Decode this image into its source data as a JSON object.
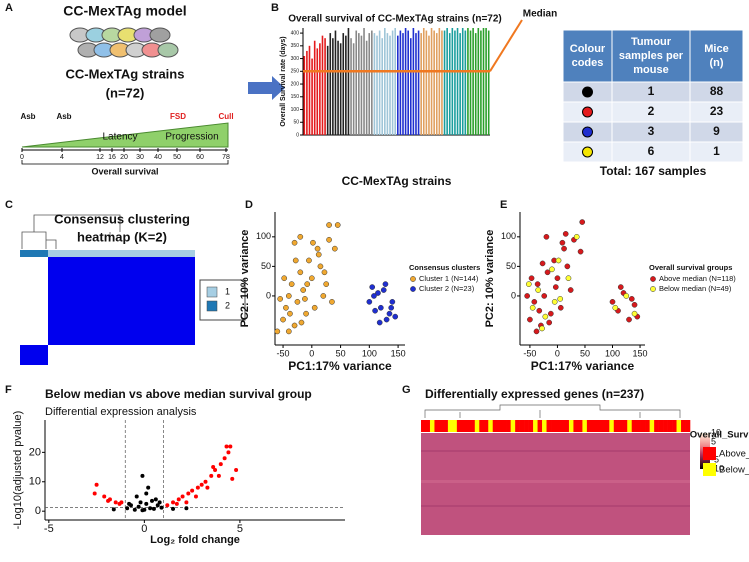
{
  "panel_labels": [
    "A",
    "B",
    "C",
    "D",
    "E",
    "F",
    "G"
  ],
  "panel_a": {
    "title": "CC-MexTAg model",
    "strains_label": "CC-MexTAg strains",
    "strains_n": "(n=72)",
    "events": [
      "Asb",
      "Asb",
      "FSD",
      "Cull"
    ],
    "phases": [
      "Latency",
      "Progression"
    ],
    "timeline_ticks": [
      0,
      4,
      12,
      16,
      20,
      30,
      40,
      50,
      60,
      78
    ],
    "axis_label": "Overall survival"
  },
  "panel_b_table": {
    "headers": [
      [
        "Colour",
        "codes"
      ],
      [
        "Tumour",
        "samples per",
        "mouse"
      ],
      [
        "Mice",
        "(n)"
      ]
    ],
    "rows": [
      {
        "dot_color": "#000000",
        "samples": 1,
        "mice": 88
      },
      {
        "dot_color": "#e41a1c",
        "samples": 2,
        "mice": 23
      },
      {
        "dot_color": "#1f2fd0",
        "samples": 3,
        "mice": 9
      },
      {
        "dot_color": "#f5e600",
        "samples": 6,
        "mice": 1
      }
    ],
    "total": "Total: 167 samples"
  },
  "panel_c": {
    "title_lines": [
      "Consensus clustering",
      "heatmap (K=2)"
    ],
    "legend": [
      {
        "label": "1",
        "color": "#a6cee3"
      },
      {
        "label": "2",
        "color": "#1f78b4"
      }
    ]
  },
  "panel_g": {
    "title": "Differentially expressed genes (n=237)",
    "legend_title": "Overall_Survival",
    "legend": [
      {
        "label": "Above_median",
        "color": "#ff0000"
      },
      {
        "label": "Below_median",
        "color": "#ffff00"
      }
    ],
    "colorbar": {
      "range": [
        -10,
        10
      ],
      "ticks": [
        10,
        5,
        0,
        -5,
        -10
      ]
    },
    "annotation": [
      0,
      0,
      1,
      0,
      0,
      0,
      1,
      1,
      0,
      0,
      0,
      0,
      1,
      0,
      0,
      1,
      0,
      0,
      0,
      0,
      1,
      0,
      0,
      0,
      0,
      1,
      0,
      1,
      0,
      0,
      0,
      0,
      0,
      1,
      0,
      0,
      1,
      0,
      0,
      0,
      0,
      0,
      1,
      0,
      0,
      0,
      1,
      0,
      0,
      0,
      0,
      1,
      0,
      0,
      0,
      0,
      0,
      1,
      0,
      0
    ]
  },
  "chart_data": [
    {
      "type": "violin",
      "title": "Overall survival of CC-MexTAg strains (n=72)",
      "x_label": "CC-MexTAg strains",
      "y_label": "Overall Survival rate (days)",
      "ylim": [
        0,
        420
      ],
      "yticks": [
        0,
        50,
        100,
        150,
        200,
        250,
        300,
        350,
        400
      ],
      "median": 250,
      "median_label": "Median",
      "series": [
        {
          "color": "#e41a1c",
          "values": [
            310,
            330,
            350,
            300,
            370,
            340,
            360,
            390,
            380
          ]
        },
        {
          "color": "#222222",
          "values": [
            350,
            400,
            380,
            410,
            370,
            360,
            400,
            390,
            420
          ]
        },
        {
          "color": "#888888",
          "values": [
            380,
            360,
            410,
            400,
            390,
            420,
            370,
            400,
            410
          ]
        },
        {
          "color": "#9fc5d8",
          "values": [
            400,
            390,
            410,
            380,
            420,
            400,
            390,
            410,
            420
          ]
        },
        {
          "color": "#1f2fd0",
          "values": [
            390,
            410,
            400,
            420,
            410,
            380,
            420,
            400,
            410
          ]
        },
        {
          "color": "#e0a060",
          "values": [
            400,
            420,
            410,
            390,
            420,
            410,
            400,
            420,
            410
          ]
        },
        {
          "color": "#1a9e9e",
          "values": [
            410,
            420,
            400,
            420,
            410,
            420,
            400,
            420,
            410
          ]
        },
        {
          "color": "#2ca02c",
          "values": [
            420,
            410,
            420,
            400,
            420,
            410,
            420,
            420,
            410
          ]
        }
      ]
    },
    {
      "type": "scatter",
      "x_label": "PC1:17% variance",
      "y_label": "PC2: 10% variance",
      "xlim": [
        -64,
        162
      ],
      "ylim": [
        -83,
        142
      ],
      "xticks": [
        -50,
        0,
        50,
        100,
        150
      ],
      "yticks": [
        0,
        50,
        100
      ],
      "legend_title": "Consensus clusters",
      "series": [
        {
          "name": "Cluster 1 (N=144)",
          "color": "#f0a830",
          "x": [
            -50,
            -45,
            -40,
            -35,
            -30,
            -25,
            -20,
            -15,
            -10,
            -5,
            0,
            5,
            10,
            15,
            20,
            -55,
            -48,
            -38,
            -28,
            -18,
            -8,
            2,
            12,
            22,
            30,
            40,
            45,
            30,
            -30,
            -20,
            25,
            35,
            -60,
            -40,
            -12
          ],
          "values": [
            -40,
            -20,
            0,
            20,
            -50,
            -10,
            40,
            10,
            -30,
            60,
            30,
            -20,
            80,
            50,
            0,
            -5,
            30,
            -30,
            60,
            -45,
            20,
            90,
            70,
            40,
            95,
            80,
            120,
            120,
            90,
            100,
            20,
            -10,
            -60,
            -60,
            -5
          ]
        },
        {
          "name": "Cluster 2 (N=23)",
          "color": "#1f2fd0",
          "x": [
            100,
            105,
            110,
            115,
            120,
            125,
            130,
            135,
            140,
            145,
            108,
            118,
            128,
            138
          ],
          "values": [
            -10,
            15,
            -25,
            5,
            -20,
            10,
            -40,
            -30,
            -10,
            -35,
            0,
            -45,
            20,
            -20
          ]
        }
      ]
    },
    {
      "type": "scatter",
      "x_label": "PC1:17% variance",
      "y_label": "PC2: 10% variance",
      "xlim": [
        -68,
        159
      ],
      "ylim": [
        -83,
        142
      ],
      "xticks": [
        -50,
        0,
        50,
        100,
        150
      ],
      "yticks": [
        0,
        50,
        100
      ],
      "legend_title": "Overall survival groups",
      "series": [
        {
          "name": "Above median (N=118)",
          "color": "#d7191c",
          "x": [
            -50,
            -42,
            -36,
            -30,
            -24,
            -18,
            -12,
            -6,
            0,
            6,
            12,
            18,
            24,
            -55,
            -47,
            -33,
            -27,
            -15,
            -3,
            9,
            15,
            30,
            42,
            45,
            -20,
            -38,
            100,
            110,
            120,
            130,
            140,
            145,
            115,
            135
          ],
          "values": [
            -40,
            -10,
            20,
            -50,
            0,
            40,
            -30,
            60,
            30,
            -20,
            80,
            50,
            10,
            0,
            30,
            -25,
            55,
            -45,
            15,
            90,
            105,
            95,
            75,
            125,
            100,
            -60,
            -10,
            -25,
            5,
            -40,
            -15,
            -35,
            15,
            -5
          ]
        },
        {
          "name": "Below median (N=49)",
          "color": "#ffff33",
          "x": [
            -45,
            -35,
            -22,
            -10,
            5,
            20,
            -52,
            -28,
            2,
            35,
            105,
            125,
            140,
            -5
          ],
          "values": [
            -20,
            10,
            -35,
            45,
            -5,
            30,
            20,
            -55,
            60,
            100,
            -20,
            0,
            -30,
            -10
          ]
        }
      ]
    },
    {
      "type": "volcano",
      "title": "Below median vs above median survival group",
      "subtitle": "Differential expression analysis",
      "x_label": "Log₂ fold change",
      "y_label": "-Log10(adjusted pvalue)",
      "xlim": [
        -5.2,
        10.5
      ],
      "ylim": [
        -3,
        31
      ],
      "xticks": [
        -5,
        0,
        5
      ],
      "yticks": [
        0,
        10,
        20
      ],
      "thresholds": {
        "x": [
          -1,
          1
        ],
        "y": 1.3
      },
      "series": [
        {
          "color": "#000000",
          "x": [
            -0.9,
            -0.7,
            -0.5,
            -0.3,
            -0.1,
            0.1,
            0.3,
            0.5,
            0.7,
            0.9,
            -0.2,
            0.4,
            0.6,
            -0.1,
            0.2,
            0.1,
            -0.4,
            -0.8,
            0.8,
            0,
            1.5,
            -1.6,
            2.2
          ],
          "values": [
            1,
            2,
            0.5,
            1.5,
            0.3,
            2.5,
            1,
            0.8,
            2,
            1.2,
            3,
            3.5,
            4,
            12,
            8,
            6,
            5,
            2.5,
            3,
            0.5,
            0.8,
            0.6,
            1
          ]
        },
        {
          "color": "#ff0000",
          "x": [
            -2.5,
            -2.6,
            -2.1,
            -1.8,
            -1.5,
            -1.3,
            -1.9,
            -1.2,
            1.2,
            1.5,
            1.8,
            2,
            2.3,
            2.5,
            2.8,
            3,
            3.2,
            3.5,
            3.7,
            4,
            4.2,
            4.4,
            4.5,
            3.9,
            3.3,
            2.7,
            2.2,
            1.7,
            4.8,
            4.6,
            3.6,
            4.3
          ],
          "values": [
            9,
            6,
            5,
            4,
            3,
            2.5,
            3.5,
            3,
            2,
            3,
            4,
            5,
            6,
            7,
            8,
            9,
            10,
            12,
            14,
            16,
            18,
            20,
            22,
            12,
            8,
            5,
            3,
            2.5,
            14,
            11,
            15,
            22
          ]
        }
      ]
    }
  ]
}
